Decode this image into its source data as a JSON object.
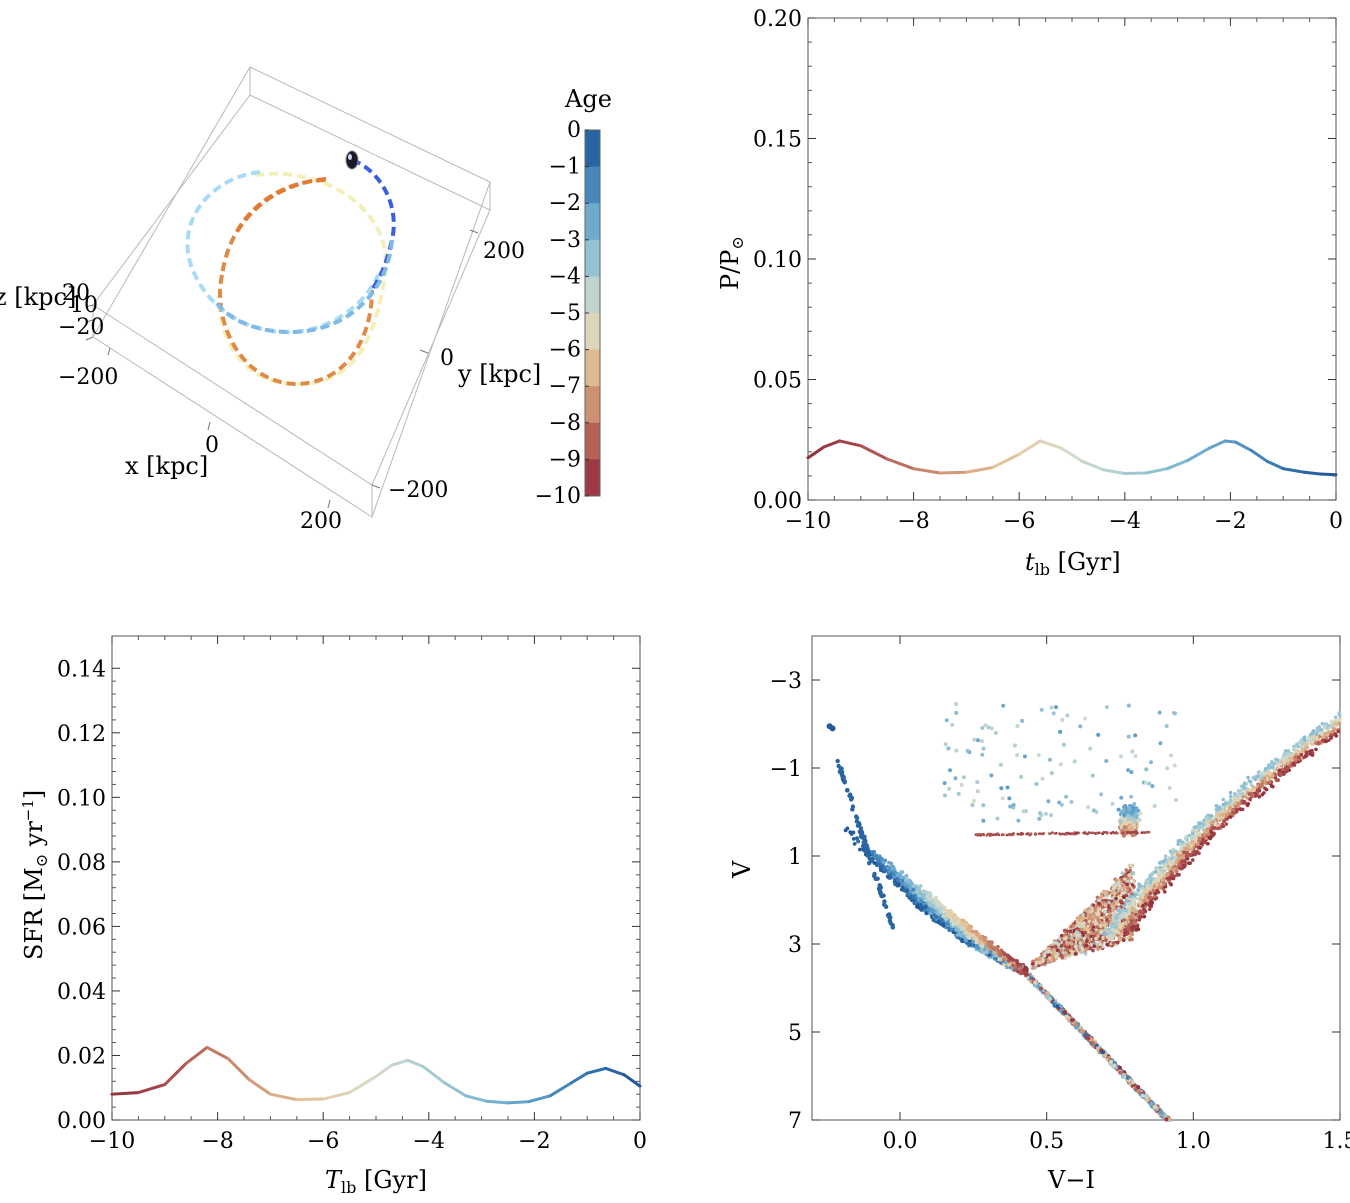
{
  "colors": {
    "age_scale": [
      "#8f2f3a",
      "#a8474b",
      "#c27a64",
      "#d8a57e",
      "#e6cda6",
      "#d4dccb",
      "#a9ccd2",
      "#80b8d4",
      "#5a9bc8",
      "#3274b0",
      "#1f5594"
    ],
    "orbit_dark_blue": "#3a5fd9",
    "orbit_orange": "#e08a45",
    "orbit_light_blue": "#a8dcf5",
    "orbit_yellow": "#f3efb8"
  },
  "chart_data": [
    {
      "type": "line",
      "subtype": "3d-orbit",
      "xlabel": "x [kpc]",
      "ylabel": "y [kpc]",
      "zlabel": "z [kpc]",
      "x_ticks": [
        "−200",
        "0",
        "200"
      ],
      "y_ticks": [
        "−200",
        "0",
        "200"
      ],
      "z_ticks": [
        "20",
        "10",
        "−20"
      ],
      "colorbar": {
        "title": "Age",
        "range": [
          -10,
          0
        ],
        "ticks": [
          "0",
          "−1",
          "−2",
          "−3",
          "−4",
          "−5",
          "−6",
          "−7",
          "−8",
          "−9",
          "−10"
        ]
      }
    },
    {
      "type": "line",
      "xlabel_main": "t",
      "xlabel_sub": "lb",
      "xlabel_unit": " [Gyr]",
      "ylabel_main": "P/P",
      "ylabel_sub": "⊙",
      "xlim": [
        -10,
        0
      ],
      "ylim": [
        0,
        0.2
      ],
      "x_ticks": [
        -10,
        -8,
        -6,
        -4,
        -2,
        0
      ],
      "x_tick_labels": [
        "−10",
        "−8",
        "−6",
        "−4",
        "−2",
        "0"
      ],
      "y_ticks": [
        0,
        0.05,
        0.1,
        0.15,
        0.2
      ],
      "y_tick_labels": [
        "0.00",
        "0.05",
        "0.10",
        "0.15",
        "0.20"
      ],
      "series": [
        {
          "name": "P/P⊙",
          "x": [
            -10,
            -9.7,
            -9.4,
            -9.0,
            -8.5,
            -8.0,
            -7.5,
            -7.0,
            -6.5,
            -6.0,
            -5.6,
            -5.2,
            -4.8,
            -4.4,
            -4.0,
            -3.6,
            -3.2,
            -2.8,
            -2.4,
            -2.1,
            -1.9,
            -1.6,
            -1.3,
            -1.0,
            -0.6,
            -0.3,
            0
          ],
          "y": [
            0.0175,
            0.022,
            0.0245,
            0.0225,
            0.017,
            0.013,
            0.0112,
            0.0115,
            0.0135,
            0.019,
            0.0245,
            0.0215,
            0.016,
            0.0125,
            0.011,
            0.0112,
            0.013,
            0.0165,
            0.0215,
            0.0245,
            0.024,
            0.0205,
            0.016,
            0.013,
            0.0115,
            0.0108,
            0.0105
          ]
        }
      ]
    },
    {
      "type": "line",
      "xlabel_main": "T",
      "xlabel_sub": "lb",
      "xlabel_unit": " [Gyr]",
      "ylabel_text": "SFR [M",
      "ylabel_sun": "⊙",
      "ylabel_unit": " yr",
      "ylabel_exp": "−1",
      "ylabel_close": "]",
      "xlim": [
        -10,
        0
      ],
      "ylim": [
        0,
        0.15
      ],
      "x_ticks": [
        -10,
        -8,
        -6,
        -4,
        -2,
        0
      ],
      "x_tick_labels": [
        "−10",
        "−8",
        "−6",
        "−4",
        "−2",
        "0"
      ],
      "y_ticks": [
        0,
        0.02,
        0.04,
        0.06,
        0.08,
        0.1,
        0.12,
        0.14
      ],
      "y_tick_labels": [
        "0.00",
        "0.02",
        "0.04",
        "0.06",
        "0.08",
        "0.10",
        "0.12",
        "0.14"
      ],
      "series": [
        {
          "name": "SFR",
          "x": [
            -10,
            -9.5,
            -9.0,
            -8.6,
            -8.2,
            -7.8,
            -7.4,
            -7.0,
            -6.5,
            -6.0,
            -5.5,
            -5.0,
            -4.7,
            -4.4,
            -4.1,
            -3.7,
            -3.3,
            -2.9,
            -2.5,
            -2.1,
            -1.7,
            -1.3,
            -1.0,
            -0.65,
            -0.3,
            0
          ],
          "y": [
            0.008,
            0.0085,
            0.011,
            0.0175,
            0.0225,
            0.019,
            0.0125,
            0.008,
            0.0063,
            0.0065,
            0.0085,
            0.0135,
            0.017,
            0.0185,
            0.0165,
            0.0115,
            0.0075,
            0.0058,
            0.0053,
            0.0057,
            0.0075,
            0.0115,
            0.0145,
            0.016,
            0.014,
            0.0105
          ]
        }
      ]
    },
    {
      "type": "scatter",
      "xlabel": "V−I",
      "ylabel": "V",
      "xlim": [
        -0.3,
        1.5
      ],
      "ylim": [
        7,
        -4
      ],
      "x_ticks": [
        0,
        0.5,
        1,
        1.5
      ],
      "x_tick_labels": [
        "0.0",
        "0.5",
        "1.0",
        "1.5"
      ],
      "y_ticks": [
        -3,
        -1,
        1,
        3,
        5,
        7
      ],
      "y_tick_labels": [
        "−3",
        "−1",
        "1",
        "3",
        "5",
        "7"
      ],
      "color_by": "age",
      "description_points": {
        "main_sequence": {
          "color": [
            0.42,
            0.92
          ],
          "V": [
            3.5,
            7
          ]
        },
        "turnoff": {
          "color": [
            -0.25,
            0.45
          ],
          "V": [
            -1.5,
            3.8
          ]
        },
        "red_giant_branch": {
          "color": [
            0.75,
            1.45
          ],
          "V": [
            -2.8,
            2.8
          ]
        },
        "horizontal_branch": {
          "color": [
            0.25,
            0.85
          ],
          "V": [
            0.45,
            0.6
          ]
        }
      }
    }
  ]
}
